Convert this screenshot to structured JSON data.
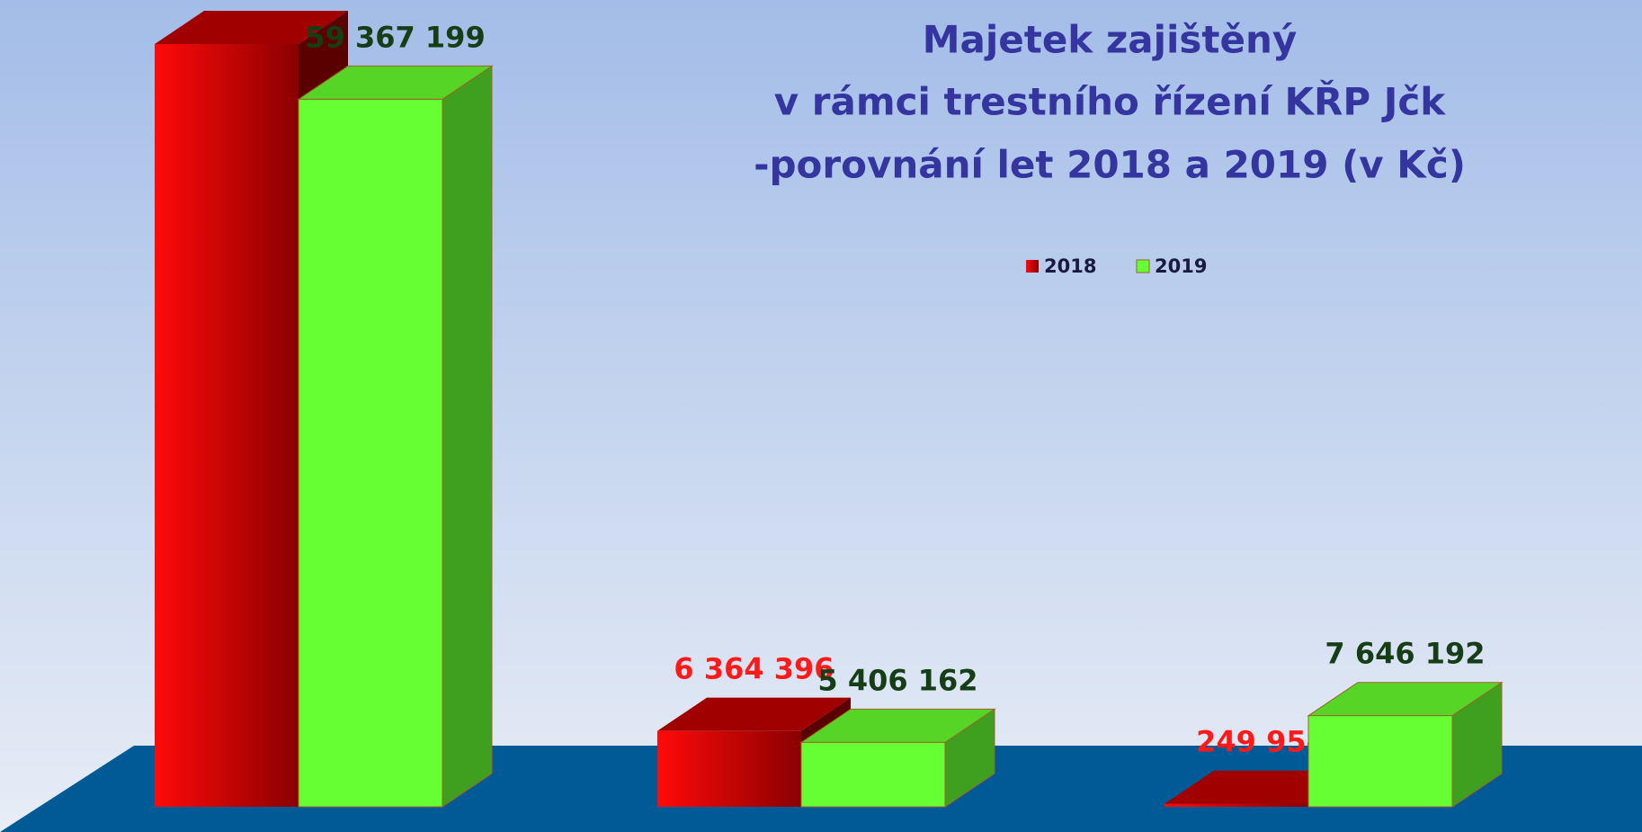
{
  "chart_data": {
    "type": "bar3d",
    "title": [
      "Majetek zajištěný",
      "v rámci trestního řízení  KŘP Jčk",
      "-porovnání let 2018 a 2019 (v Kč)"
    ],
    "categories": [
      null,
      null,
      null
    ],
    "series": [
      {
        "name": "2018",
        "color": "#e00000",
        "values": [
          64000000,
          6364396,
          249954
        ],
        "value_labels": [
          null,
          "6 364 396",
          "249 954"
        ]
      },
      {
        "name": "2019",
        "color": "#66ff33",
        "values": [
          59367199,
          5406162,
          7646192
        ],
        "value_labels": [
          "59 367 199",
          "5 406 162",
          "7 646 192"
        ]
      }
    ]
  }
}
